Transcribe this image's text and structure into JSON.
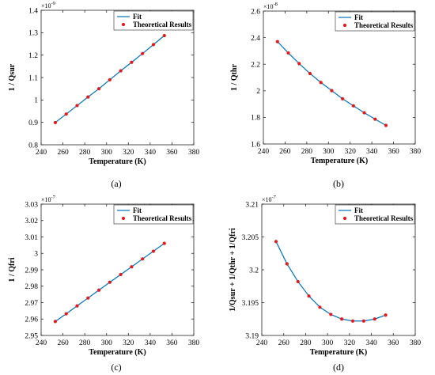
{
  "figure": {
    "legend_fit": "Fit",
    "legend_theory": "Theoretical Results"
  },
  "chart_data": [
    {
      "type": "line",
      "caption": "(a)",
      "xlabel": "Temperature (K)",
      "ylabel": "1 / Qsur",
      "exponent_base": "×10",
      "exponent_power": "-9",
      "xlim": [
        240,
        380
      ],
      "ylim": [
        0.8,
        1.4
      ],
      "xticks": [
        240,
        260,
        280,
        300,
        320,
        340,
        360,
        380
      ],
      "xtick_labels": [
        "240",
        "260",
        "280",
        "300",
        "320",
        "340",
        "360",
        "380"
      ],
      "yticks": [
        0.8,
        0.9,
        1.0,
        1.1,
        1.2,
        1.3,
        1.4
      ],
      "ytick_labels": [
        "0.8",
        "0.9",
        "1",
        "1.1",
        "1.2",
        "1.3",
        "1.4"
      ],
      "legend_position": "top-right",
      "grid": false,
      "series": [
        {
          "name": "Fit",
          "style": "line",
          "color": "#0072BD",
          "x": [
            253,
            263,
            273,
            283,
            293,
            303,
            313,
            323,
            333,
            343,
            353
          ],
          "y": [
            0.899,
            0.937,
            0.975,
            1.013,
            1.05,
            1.09,
            1.13,
            1.168,
            1.207,
            1.247,
            1.287
          ]
        },
        {
          "name": "Theoretical Results",
          "style": "markers",
          "color": "#E41A1C",
          "x": [
            253,
            263,
            273,
            283,
            293,
            303,
            313,
            323,
            333,
            343,
            353
          ],
          "y": [
            0.899,
            0.937,
            0.975,
            1.013,
            1.05,
            1.09,
            1.13,
            1.168,
            1.207,
            1.247,
            1.287
          ]
        }
      ]
    },
    {
      "type": "line",
      "caption": "(b)",
      "xlabel": "Temperature (K)",
      "ylabel": "1 / Qthr",
      "exponent_base": "×10",
      "exponent_power": "-8",
      "xlim": [
        240,
        380
      ],
      "ylim": [
        1.6,
        2.6
      ],
      "xticks": [
        240,
        260,
        280,
        300,
        320,
        340,
        360,
        380
      ],
      "xtick_labels": [
        "240",
        "260",
        "280",
        "300",
        "320",
        "340",
        "360",
        "380"
      ],
      "yticks": [
        1.6,
        1.8,
        2.0,
        2.2,
        2.4,
        2.6
      ],
      "ytick_labels": [
        "1.6",
        "1.8",
        "2",
        "2.2",
        "2.4",
        "2.6"
      ],
      "legend_position": "top-right",
      "grid": false,
      "series": [
        {
          "name": "Fit",
          "style": "line",
          "color": "#0072BD",
          "x": [
            253,
            263,
            273,
            283,
            293,
            303,
            313,
            323,
            333,
            343,
            353
          ],
          "y": [
            2.37,
            2.285,
            2.205,
            2.13,
            2.063,
            2.002,
            1.94,
            1.887,
            1.835,
            1.787,
            1.74
          ]
        },
        {
          "name": "Theoretical Results",
          "style": "markers",
          "color": "#E41A1C",
          "x": [
            253,
            263,
            273,
            283,
            293,
            303,
            313,
            323,
            333,
            343,
            353
          ],
          "y": [
            2.37,
            2.285,
            2.205,
            2.13,
            2.063,
            2.002,
            1.94,
            1.887,
            1.835,
            1.787,
            1.74
          ]
        }
      ]
    },
    {
      "type": "line",
      "caption": "(c)",
      "xlabel": "Temperature (K)",
      "ylabel": "1 / Qfri",
      "exponent_base": "×10",
      "exponent_power": "-7",
      "xlim": [
        240,
        380
      ],
      "ylim": [
        2.95,
        3.03
      ],
      "xticks": [
        240,
        260,
        280,
        300,
        320,
        340,
        360,
        380
      ],
      "xtick_labels": [
        "240",
        "260",
        "280",
        "300",
        "320",
        "340",
        "360",
        "380"
      ],
      "yticks": [
        2.95,
        2.96,
        2.97,
        2.98,
        2.99,
        3.0,
        3.01,
        3.02,
        3.03
      ],
      "ytick_labels": [
        "2.95",
        "2.96",
        "2.97",
        "2.98",
        "2.99",
        "3",
        "3.01",
        "3.02",
        "3.03"
      ],
      "legend_position": "top-right",
      "grid": false,
      "series": [
        {
          "name": "Fit",
          "style": "line",
          "color": "#0072BD",
          "x": [
            253,
            263,
            273,
            283,
            293,
            303,
            313,
            323,
            333,
            343,
            353
          ],
          "y": [
            2.9585,
            2.9632,
            2.968,
            2.9728,
            2.9776,
            2.9824,
            2.9871,
            2.9918,
            2.9966,
            3.0013,
            3.0061
          ]
        },
        {
          "name": "Theoretical Results",
          "style": "markers",
          "color": "#E41A1C",
          "x": [
            253,
            263,
            273,
            283,
            293,
            303,
            313,
            323,
            333,
            343,
            353
          ],
          "y": [
            2.9585,
            2.9632,
            2.968,
            2.9728,
            2.9776,
            2.9824,
            2.9871,
            2.9918,
            2.9966,
            3.0013,
            3.0061
          ]
        }
      ]
    },
    {
      "type": "line",
      "caption": "(d)",
      "xlabel": "Temperature (K)",
      "ylabel": "1/Qsur + 1/Qthr + 1/Qfri",
      "exponent_base": "×10",
      "exponent_power": "-7",
      "xlim": [
        240,
        380
      ],
      "ylim": [
        3.19,
        3.21
      ],
      "xticks": [
        240,
        260,
        280,
        300,
        320,
        340,
        360,
        380
      ],
      "xtick_labels": [
        "240",
        "260",
        "280",
        "300",
        "320",
        "340",
        "360",
        "380"
      ],
      "yticks": [
        3.19,
        3.195,
        3.2,
        3.205,
        3.21
      ],
      "ytick_labels": [
        "3.19",
        "3.195",
        "3.2",
        "3.205",
        "3.21"
      ],
      "legend_position": "top-right",
      "grid": false,
      "series": [
        {
          "name": "Fit",
          "style": "line",
          "color": "#0072BD",
          "x": [
            253,
            263,
            273,
            283,
            293,
            303,
            313,
            323,
            333,
            343,
            353
          ],
          "y": [
            3.2043,
            3.2009,
            3.1982,
            3.196,
            3.1943,
            3.1932,
            3.1925,
            3.1922,
            3.1922,
            3.1925,
            3.1931
          ]
        },
        {
          "name": "Theoretical Results",
          "style": "markers",
          "color": "#E41A1C",
          "x": [
            253,
            263,
            273,
            283,
            293,
            303,
            313,
            323,
            333,
            343,
            353
          ],
          "y": [
            3.2043,
            3.2009,
            3.1982,
            3.196,
            3.1943,
            3.1932,
            3.1925,
            3.1922,
            3.1922,
            3.1925,
            3.1931
          ]
        }
      ]
    }
  ]
}
